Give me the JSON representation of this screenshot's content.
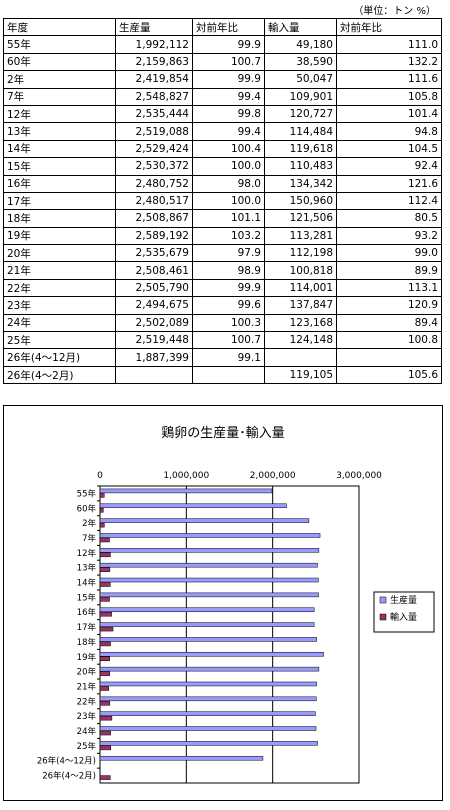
{
  "unit_note": "（単位：トン %）",
  "table": {
    "headers": [
      "年度",
      "生産量",
      "対前年比",
      "輸入量",
      "対前年比"
    ],
    "rows": [
      [
        "55年",
        "1,992,112",
        "99.9",
        "49,180",
        "111.0"
      ],
      [
        "60年",
        "2,159,863",
        "100.7",
        "38,590",
        "132.2"
      ],
      [
        "2年",
        "2,419,854",
        "99.9",
        "50,047",
        "111.6"
      ],
      [
        "7年",
        "2,548,827",
        "99.4",
        "109,901",
        "105.8"
      ],
      [
        "12年",
        "2,535,444",
        "99.8",
        "120,727",
        "101.4"
      ],
      [
        "13年",
        "2,519,088",
        "99.4",
        "114,484",
        "94.8"
      ],
      [
        "14年",
        "2,529,424",
        "100.4",
        "119,618",
        "104.5"
      ],
      [
        "15年",
        "2,530,372",
        "100.0",
        "110,483",
        "92.4"
      ],
      [
        "16年",
        "2,480,752",
        "98.0",
        "134,342",
        "121.6"
      ],
      [
        "17年",
        "2,480,517",
        "100.0",
        "150,960",
        "112.4"
      ],
      [
        "18年",
        "2,508,867",
        "101.1",
        "121,506",
        "80.5"
      ],
      [
        "19年",
        "2,589,192",
        "103.2",
        "113,281",
        "93.2"
      ],
      [
        "20年",
        "2,535,679",
        "97.9",
        "112,198",
        "99.0"
      ],
      [
        "21年",
        "2,508,461",
        "98.9",
        "100,818",
        "89.9"
      ],
      [
        "22年",
        "2,505,790",
        "99.9",
        "114,001",
        "113.1"
      ],
      [
        "23年",
        "2,494,675",
        "99.6",
        "137,847",
        "120.9"
      ],
      [
        "24年",
        "2,502,089",
        "100.3",
        "123,168",
        "89.4"
      ],
      [
        "25年",
        "2,519,448",
        "100.7",
        "124,148",
        "100.8"
      ],
      [
        "26年(4～12月)",
        "1,887,399",
        "99.1",
        "",
        ""
      ],
      [
        "26年(4～2月)",
        "",
        "",
        "119,105",
        "105.6"
      ]
    ]
  },
  "chart_data": {
    "type": "bar",
    "orientation": "horizontal",
    "title": "鶏卵の生産量･輸入量",
    "categories": [
      "55年",
      "60年",
      "2年",
      "7年",
      "12年",
      "13年",
      "14年",
      "15年",
      "16年",
      "17年",
      "18年",
      "19年",
      "20年",
      "21年",
      "22年",
      "23年",
      "24年",
      "25年",
      "26年(4～12月)",
      "26年(4～2月)"
    ],
    "series": [
      {
        "name": "生産量",
        "color": "#9999ff",
        "values": [
          1992112,
          2159863,
          2419854,
          2548827,
          2535444,
          2519088,
          2529424,
          2530372,
          2480752,
          2480517,
          2508867,
          2589192,
          2535679,
          2508461,
          2505790,
          2494675,
          2502089,
          2519448,
          1887399,
          0
        ]
      },
      {
        "name": "輸入量",
        "color": "#993366",
        "values": [
          49180,
          38590,
          50047,
          109901,
          120727,
          114484,
          119618,
          110483,
          134342,
          150960,
          121506,
          113281,
          112198,
          100818,
          114001,
          137847,
          123168,
          124148,
          0,
          119105
        ]
      }
    ],
    "xlim": [
      0,
      3000000
    ],
    "ticks": [
      "0",
      "1,000,000",
      "2,000,000",
      "3,000,000"
    ],
    "tick_values": [
      0,
      1000000,
      2000000,
      3000000
    ],
    "grid": true,
    "legend": "right"
  }
}
